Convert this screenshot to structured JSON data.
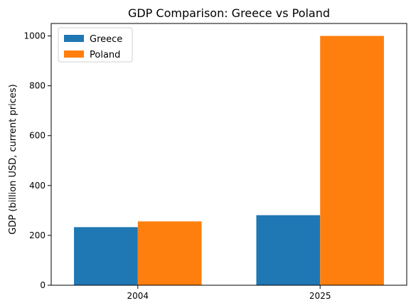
{
  "chart_data": {
    "type": "bar",
    "title": "GDP Comparison: Greece vs Poland",
    "xlabel": "",
    "ylabel": "GDP (billion USD, current prices)",
    "categories": [
      "2004",
      "2025"
    ],
    "series": [
      {
        "name": "Greece",
        "values": [
          233,
          281
        ],
        "color": "#1f77b4"
      },
      {
        "name": "Poland",
        "values": [
          256,
          1000
        ],
        "color": "#ff7f0e"
      }
    ],
    "ylim": [
      0,
      1050
    ],
    "yticks": [
      0,
      200,
      400,
      600,
      800,
      1000
    ],
    "grid": false,
    "legend_position": "top-left"
  }
}
